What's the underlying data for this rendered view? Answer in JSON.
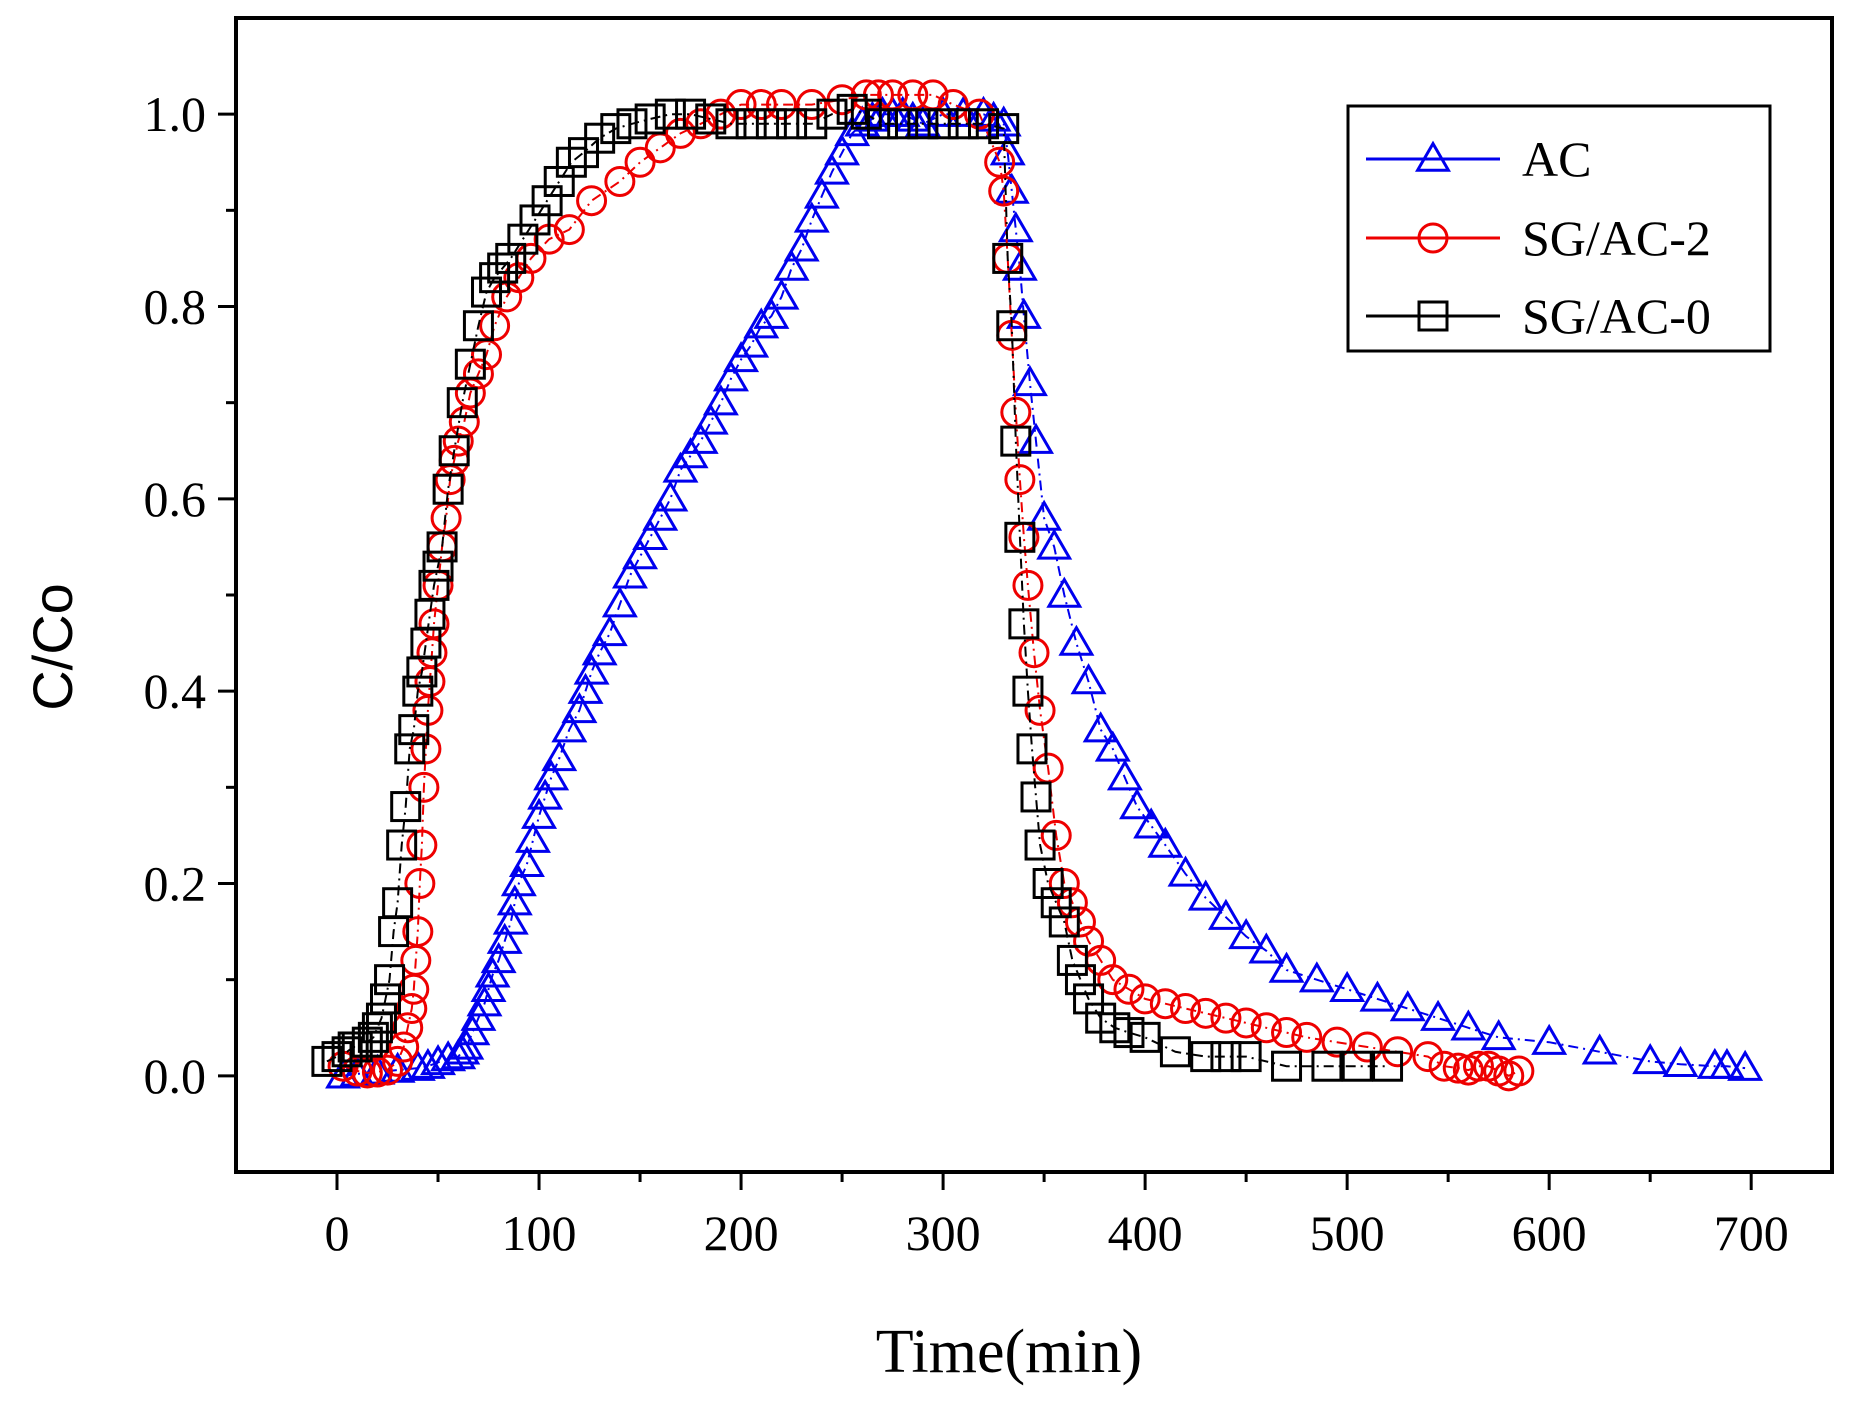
{
  "chart_data": {
    "type": "scatter",
    "title": "",
    "xlabel": "Time(min)",
    "ylabel": "C/Co",
    "xlim": [
      -50,
      740
    ],
    "ylim": [
      -0.1,
      1.1
    ],
    "xticks": [
      0,
      100,
      200,
      300,
      400,
      500,
      600,
      700
    ],
    "xtick_labels": [
      "0",
      "100",
      "200",
      "300",
      "400",
      "500",
      "600",
      "700"
    ],
    "yticks": [
      0.0,
      0.2,
      0.4,
      0.6,
      0.8,
      1.0
    ],
    "ytick_labels": [
      "0.0",
      "0.2",
      "0.4",
      "0.6",
      "0.8",
      "1.0"
    ],
    "grid": false,
    "legend_position": "top-right",
    "series": [
      {
        "name": "AC",
        "label": "AC",
        "marker": "triangle",
        "color": "#0000ee",
        "line_style": "dash-dot",
        "x": [
          3,
          10,
          20,
          30,
          40,
          45,
          50,
          55,
          60,
          62,
          64,
          67,
          70,
          73,
          75,
          77,
          80,
          83,
          86,
          88,
          90,
          94,
          97,
          100,
          103,
          106,
          110,
          115,
          120,
          123,
          126,
          130,
          135,
          140,
          145,
          150,
          155,
          160,
          165,
          170,
          175,
          180,
          185,
          190,
          195,
          200,
          205,
          210,
          215,
          220,
          225,
          230,
          235,
          240,
          245,
          250,
          255,
          260,
          265,
          270,
          275,
          280,
          285,
          290,
          300,
          310,
          320,
          325,
          330,
          332,
          334,
          336,
          338,
          340,
          343,
          346,
          350,
          355,
          360,
          366,
          372,
          378,
          384,
          390,
          396,
          403,
          410,
          420,
          430,
          440,
          450,
          460,
          470,
          485,
          500,
          515,
          530,
          545,
          560,
          575,
          600,
          625,
          650,
          665,
          682,
          688,
          697
        ],
        "y": [
          0.0,
          0.002,
          0.004,
          0.006,
          0.008,
          0.01,
          0.014,
          0.018,
          0.02,
          0.025,
          0.03,
          0.045,
          0.06,
          0.075,
          0.09,
          0.105,
          0.12,
          0.14,
          0.16,
          0.18,
          0.2,
          0.22,
          0.245,
          0.27,
          0.29,
          0.31,
          0.33,
          0.36,
          0.38,
          0.4,
          0.42,
          0.44,
          0.46,
          0.49,
          0.52,
          0.54,
          0.56,
          0.58,
          0.6,
          0.63,
          0.645,
          0.66,
          0.68,
          0.7,
          0.725,
          0.745,
          0.76,
          0.78,
          0.79,
          0.81,
          0.84,
          0.86,
          0.89,
          0.915,
          0.94,
          0.96,
          0.98,
          0.99,
          0.995,
          1.0,
          1.0,
          1.0,
          0.995,
          0.99,
          1.0,
          1.0,
          1.0,
          0.995,
          0.99,
          0.96,
          0.92,
          0.88,
          0.84,
          0.79,
          0.72,
          0.66,
          0.58,
          0.55,
          0.5,
          0.45,
          0.41,
          0.36,
          0.34,
          0.31,
          0.28,
          0.26,
          0.24,
          0.21,
          0.185,
          0.165,
          0.145,
          0.13,
          0.11,
          0.1,
          0.09,
          0.08,
          0.07,
          0.06,
          0.05,
          0.04,
          0.035,
          0.025,
          0.015,
          0.012,
          0.01,
          0.01,
          0.008
        ]
      },
      {
        "name": "SG/AC-2",
        "label": "SG/AC-2",
        "marker": "circle",
        "color": "#ee0000",
        "line_style": "dash-dot",
        "x": [
          3,
          10,
          15,
          20,
          25,
          30,
          33,
          35,
          37,
          38,
          39,
          40,
          41,
          42,
          43,
          44,
          45,
          46,
          47,
          48,
          50,
          52,
          54,
          56,
          58,
          60,
          63,
          66,
          70,
          74,
          78,
          84,
          90,
          96,
          105,
          115,
          126,
          140,
          150,
          160,
          170,
          180,
          190,
          200,
          210,
          220,
          235,
          250,
          262,
          268,
          275,
          285,
          295,
          305,
          318,
          328,
          330,
          332,
          334,
          336,
          338,
          340,
          342,
          345,
          348,
          352,
          356,
          360,
          364,
          368,
          372,
          378,
          384,
          392,
          400,
          410,
          420,
          430,
          440,
          450,
          460,
          470,
          480,
          495,
          510,
          525,
          540,
          548,
          555,
          560,
          565,
          570,
          575,
          580,
          585
        ],
        "y": [
          0.01,
          0.005,
          0.003,
          0.004,
          0.006,
          0.015,
          0.03,
          0.05,
          0.07,
          0.09,
          0.12,
          0.15,
          0.2,
          0.24,
          0.3,
          0.34,
          0.38,
          0.41,
          0.44,
          0.47,
          0.51,
          0.55,
          0.58,
          0.62,
          0.64,
          0.66,
          0.68,
          0.71,
          0.73,
          0.75,
          0.78,
          0.81,
          0.83,
          0.85,
          0.87,
          0.88,
          0.91,
          0.93,
          0.95,
          0.965,
          0.98,
          0.99,
          1.0,
          1.01,
          1.01,
          1.01,
          1.01,
          1.015,
          1.02,
          1.02,
          1.02,
          1.02,
          1.02,
          1.01,
          1.0,
          0.95,
          0.92,
          0.85,
          0.77,
          0.69,
          0.62,
          0.56,
          0.51,
          0.44,
          0.38,
          0.32,
          0.25,
          0.2,
          0.18,
          0.16,
          0.14,
          0.12,
          0.1,
          0.09,
          0.08,
          0.075,
          0.07,
          0.065,
          0.06,
          0.055,
          0.05,
          0.045,
          0.04,
          0.035,
          0.03,
          0.025,
          0.02,
          0.01,
          0.008,
          0.006,
          0.01,
          0.01,
          0.005,
          0.0,
          0.005
        ]
      },
      {
        "name": "SG/AC-0",
        "label": "SG/AC-0",
        "marker": "square",
        "color": "#000000",
        "line_style": "dash-dot",
        "x": [
          -5,
          0,
          5,
          8,
          10,
          15,
          18,
          20,
          22,
          24,
          26,
          28,
          30,
          32,
          34,
          36,
          38,
          40,
          42,
          44,
          46,
          48,
          50,
          52,
          55,
          58,
          62,
          66,
          70,
          74,
          78,
          82,
          86,
          92,
          98,
          104,
          110,
          116,
          122,
          130,
          138,
          146,
          155,
          165,
          175,
          185,
          195,
          205,
          215,
          225,
          235,
          245,
          255,
          262,
          270,
          280,
          290,
          300,
          310,
          320,
          330,
          332,
          334,
          336,
          338,
          340,
          342,
          344,
          346,
          348,
          352,
          356,
          360,
          364,
          368,
          372,
          378,
          385,
          392,
          400,
          415,
          430,
          440,
          450,
          470,
          490,
          505,
          520
        ],
        "y": [
          0.015,
          0.02,
          0.025,
          0.03,
          0.03,
          0.035,
          0.04,
          0.05,
          0.06,
          0.08,
          0.1,
          0.15,
          0.18,
          0.24,
          0.28,
          0.34,
          0.36,
          0.4,
          0.42,
          0.45,
          0.48,
          0.51,
          0.53,
          0.55,
          0.61,
          0.65,
          0.7,
          0.74,
          0.78,
          0.815,
          0.83,
          0.84,
          0.85,
          0.87,
          0.89,
          0.91,
          0.93,
          0.95,
          0.96,
          0.975,
          0.985,
          0.99,
          0.995,
          1.0,
          1.0,
          0.995,
          0.99,
          0.99,
          0.99,
          0.99,
          0.99,
          1.0,
          1.005,
          1.0,
          0.99,
          0.99,
          0.99,
          0.99,
          0.99,
          0.99,
          0.985,
          0.85,
          0.78,
          0.66,
          0.56,
          0.47,
          0.4,
          0.34,
          0.29,
          0.24,
          0.2,
          0.18,
          0.16,
          0.12,
          0.1,
          0.08,
          0.06,
          0.05,
          0.045,
          0.04,
          0.025,
          0.02,
          0.02,
          0.02,
          0.01,
          0.01,
          0.01,
          0.01
        ]
      }
    ]
  }
}
